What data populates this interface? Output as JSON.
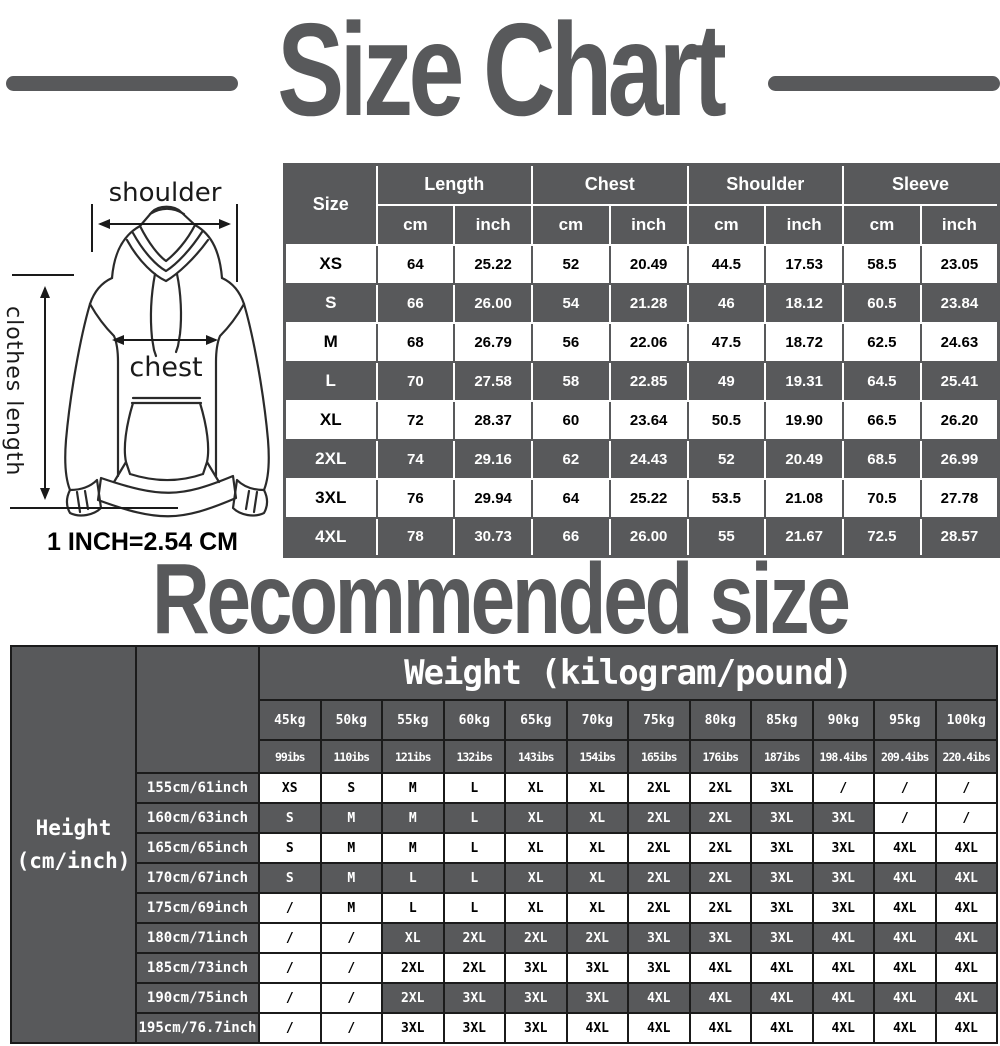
{
  "colors": {
    "accent_gray": "#58595b",
    "table_border_dark": "#1b1b1b",
    "text_black": "#000000",
    "text_white": "#ffffff"
  },
  "title": {
    "text": "Size Chart"
  },
  "diagram": {
    "shoulder_label": "shoulder",
    "chest_label": "chest",
    "length_label": "clothes length",
    "conversion_note": "1 INCH=2.54 CM"
  },
  "size_table": {
    "size_header": "Size",
    "group_headers": [
      "Length",
      "Chest",
      "Shoulder",
      "Sleeve"
    ],
    "unit_headers": [
      "cm",
      "inch",
      "cm",
      "inch",
      "cm",
      "inch",
      "cm",
      "inch"
    ],
    "rows": [
      {
        "size": "XS",
        "values": [
          "64",
          "25.22",
          "52",
          "20.49",
          "44.5",
          "17.53",
          "58.5",
          "23.05"
        ]
      },
      {
        "size": "S",
        "values": [
          "66",
          "26.00",
          "54",
          "21.28",
          "46",
          "18.12",
          "60.5",
          "23.84"
        ]
      },
      {
        "size": "M",
        "values": [
          "68",
          "26.79",
          "56",
          "22.06",
          "47.5",
          "18.72",
          "62.5",
          "24.63"
        ]
      },
      {
        "size": "L",
        "values": [
          "70",
          "27.58",
          "58",
          "22.85",
          "49",
          "19.31",
          "64.5",
          "25.41"
        ]
      },
      {
        "size": "XL",
        "values": [
          "72",
          "28.37",
          "60",
          "23.64",
          "50.5",
          "19.90",
          "66.5",
          "26.20"
        ]
      },
      {
        "size": "2XL",
        "values": [
          "74",
          "29.16",
          "62",
          "24.43",
          "52",
          "20.49",
          "68.5",
          "26.99"
        ]
      },
      {
        "size": "3XL",
        "values": [
          "76",
          "29.94",
          "64",
          "25.22",
          "53.5",
          "21.08",
          "70.5",
          "27.78"
        ]
      },
      {
        "size": "4XL",
        "values": [
          "78",
          "30.73",
          "66",
          "26.00",
          "55",
          "21.67",
          "72.5",
          "28.57"
        ]
      }
    ]
  },
  "recommended": {
    "title": "Recommended size",
    "weight_header": "Weight (kilogram/pound)",
    "height_header_line1": "Height",
    "height_header_line2": "(cm/inch)",
    "weights_kg": [
      "45kg",
      "50kg",
      "55kg",
      "60kg",
      "65kg",
      "70kg",
      "75kg",
      "80kg",
      "85kg",
      "90kg",
      "95kg",
      "100kg"
    ],
    "weights_lbs": [
      "99ibs",
      "110ibs",
      "121ibs",
      "132ibs",
      "143ibs",
      "154ibs",
      "165ibs",
      "176ibs",
      "187ibs",
      "198.4ibs",
      "209.4ibs",
      "220.4ibs"
    ],
    "rows": [
      {
        "height": "155cm/61inch",
        "sizes": [
          "XS",
          "S",
          "M",
          "L",
          "XL",
          "XL",
          "2XL",
          "2XL",
          "3XL",
          "/",
          "/",
          "/"
        ]
      },
      {
        "height": "160cm/63inch",
        "sizes": [
          "S",
          "M",
          "M",
          "L",
          "XL",
          "XL",
          "2XL",
          "2XL",
          "3XL",
          "3XL",
          "/",
          "/"
        ]
      },
      {
        "height": "165cm/65inch",
        "sizes": [
          "S",
          "M",
          "M",
          "L",
          "XL",
          "XL",
          "2XL",
          "2XL",
          "3XL",
          "3XL",
          "4XL",
          "4XL"
        ]
      },
      {
        "height": "170cm/67inch",
        "sizes": [
          "S",
          "M",
          "L",
          "L",
          "XL",
          "XL",
          "2XL",
          "2XL",
          "3XL",
          "3XL",
          "4XL",
          "4XL"
        ]
      },
      {
        "height": "175cm/69inch",
        "sizes": [
          "/",
          "M",
          "L",
          "L",
          "XL",
          "XL",
          "2XL",
          "2XL",
          "3XL",
          "3XL",
          "4XL",
          "4XL"
        ]
      },
      {
        "height": "180cm/71inch",
        "sizes": [
          "/",
          "/",
          "XL",
          "2XL",
          "2XL",
          "2XL",
          "3XL",
          "3XL",
          "3XL",
          "4XL",
          "4XL",
          "4XL"
        ]
      },
      {
        "height": "185cm/73inch",
        "sizes": [
          "/",
          "/",
          "2XL",
          "2XL",
          "3XL",
          "3XL",
          "3XL",
          "4XL",
          "4XL",
          "4XL",
          "4XL",
          "4XL"
        ]
      },
      {
        "height": "190cm/75inch",
        "sizes": [
          "/",
          "/",
          "2XL",
          "3XL",
          "3XL",
          "3XL",
          "4XL",
          "4XL",
          "4XL",
          "4XL",
          "4XL",
          "4XL"
        ]
      },
      {
        "height": "195cm/76.7inch",
        "sizes": [
          "/",
          "/",
          "3XL",
          "3XL",
          "3XL",
          "4XL",
          "4XL",
          "4XL",
          "4XL",
          "4XL",
          "4XL",
          "4XL"
        ]
      }
    ]
  }
}
